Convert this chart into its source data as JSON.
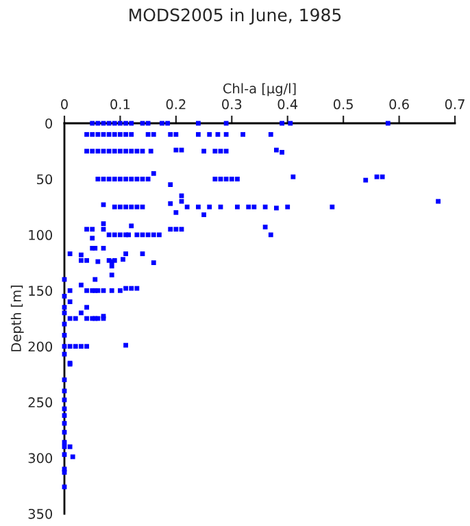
{
  "chart_data": {
    "type": "scatter",
    "title": "MODS2005 in June, 1985",
    "xlabel": "Chl-a [µg/l]",
    "ylabel": "Depth [m]",
    "xlim": [
      0,
      0.7
    ],
    "xticks": [
      0,
      0.1,
      0.2,
      0.3,
      0.4,
      0.5,
      0.6,
      0.7
    ],
    "ylim": [
      350,
      0
    ],
    "yticks": [
      0,
      50,
      100,
      150,
      200,
      250,
      300,
      350
    ],
    "marker": "square",
    "grid": false,
    "legend": false,
    "series": [
      {
        "color": "#0000ff",
        "x": [
          0.05,
          0.06,
          0.07,
          0.08,
          0.09,
          0.1,
          0.11,
          0.12,
          0.14,
          0.15,
          0.175,
          0.185,
          0.24,
          0.29,
          0.39,
          0.405,
          0.58,
          0.04,
          0.05,
          0.06,
          0.07,
          0.08,
          0.09,
          0.1,
          0.11,
          0.12,
          0.15,
          0.16,
          0.19,
          0.2,
          0.24,
          0.26,
          0.275,
          0.29,
          0.32,
          0.37,
          0.04,
          0.05,
          0.06,
          0.07,
          0.08,
          0.09,
          0.1,
          0.11,
          0.12,
          0.13,
          0.14,
          0.155,
          0.2,
          0.21,
          0.25,
          0.27,
          0.28,
          0.29,
          0.38,
          0.39,
          0.06,
          0.07,
          0.08,
          0.09,
          0.1,
          0.11,
          0.12,
          0.13,
          0.14,
          0.15,
          0.16,
          0.19,
          0.27,
          0.28,
          0.29,
          0.3,
          0.31,
          0.41,
          0.54,
          0.56,
          0.57,
          0.07,
          0.09,
          0.1,
          0.11,
          0.12,
          0.13,
          0.14,
          0.19,
          0.21,
          0.21,
          0.2,
          0.22,
          0.24,
          0.25,
          0.26,
          0.28,
          0.31,
          0.33,
          0.34,
          0.36,
          0.38,
          0.4,
          0.48,
          0.67,
          0.36,
          0.37,
          0.04,
          0.05,
          0.07,
          0.07,
          0.08,
          0.09,
          0.1,
          0.11,
          0.12,
          0.115,
          0.13,
          0.14,
          0.15,
          0.16,
          0.17,
          0.19,
          0.2,
          0.21,
          0.01,
          0.03,
          0.03,
          0.04,
          0.05,
          0.05,
          0.055,
          0.06,
          0.07,
          0.08,
          0.085,
          0.085,
          0.085,
          0.09,
          0.105,
          0.11,
          0.14,
          0.16,
          0,
          0,
          0,
          0.01,
          0.01,
          0.03,
          0.04,
          0.05,
          0.055,
          0.06,
          0.07,
          0.085,
          0.1,
          0.11,
          0.12,
          0.13,
          0.055,
          0,
          0,
          0,
          0.01,
          0.02,
          0.03,
          0.04,
          0.04,
          0.05,
          0.055,
          0.06,
          0.07,
          0.07,
          0,
          0.01,
          0.02,
          0.03,
          0.04,
          0.11,
          0,
          0.01,
          0.01,
          0,
          0,
          0,
          0,
          0,
          0,
          0,
          0,
          0,
          0,
          0,
          0,
          0,
          0.01,
          0.015
        ],
        "values": [
          0,
          0,
          0,
          0,
          0,
          0,
          0,
          0,
          0,
          0,
          0,
          0,
          0,
          0,
          0,
          0,
          0,
          10,
          10,
          10,
          10,
          10,
          10,
          10,
          10,
          10,
          10,
          10,
          10,
          10,
          10,
          10,
          10,
          10,
          10,
          10,
          25,
          25,
          25,
          25,
          25,
          25,
          25,
          25,
          25,
          25,
          25,
          25,
          24,
          24,
          25,
          25,
          25,
          25,
          24,
          26,
          50,
          50,
          50,
          50,
          50,
          50,
          50,
          50,
          50,
          50,
          45,
          55,
          50,
          50,
          50,
          50,
          50,
          48,
          51,
          48,
          48,
          73,
          75,
          75,
          75,
          75,
          75,
          75,
          72,
          65,
          70,
          80,
          75,
          75,
          82,
          75,
          75,
          75,
          75,
          75,
          75,
          76,
          75,
          75,
          70,
          93,
          100,
          95,
          95,
          90,
          95,
          100,
          100,
          100,
          100,
          92,
          100,
          100,
          100,
          100,
          100,
          100,
          95,
          95,
          95,
          117,
          118,
          123,
          123,
          112,
          103,
          112,
          124,
          112,
          123,
          124,
          128,
          136,
          123,
          122,
          117,
          117,
          125,
          140,
          155,
          165,
          150,
          160,
          145,
          150,
          150,
          150,
          150,
          150,
          150,
          150,
          148,
          148,
          148,
          140,
          170,
          180,
          190,
          175,
          175,
          170,
          165,
          175,
          175,
          175,
          175,
          175,
          173,
          200,
          200,
          200,
          200,
          200,
          199,
          207,
          215,
          216,
          240,
          248,
          256,
          262,
          269,
          277,
          286,
          290,
          297,
          310,
          313,
          326,
          230,
          290,
          299
        ]
      }
    ]
  }
}
